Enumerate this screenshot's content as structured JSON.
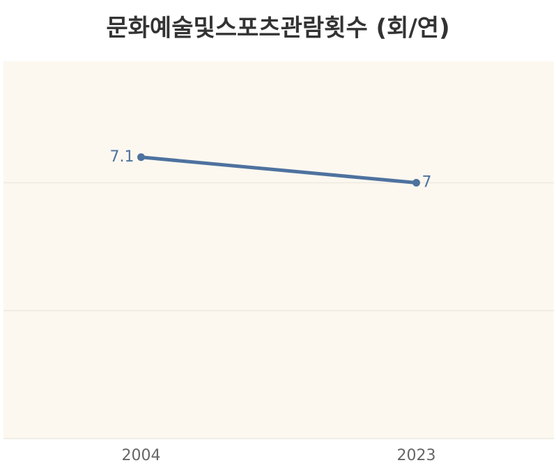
{
  "chart_data": {
    "type": "line",
    "title": "문화예술및스포츠관람횟수 (회/연)",
    "categories": [
      "2004",
      "2023"
    ],
    "series": [
      {
        "name": "문화예술및스포츠관람횟수",
        "color": "#4e729f",
        "values": [
          7.1,
          7
        ]
      }
    ],
    "ylim": [
      6,
      7.475
    ],
    "yticks": [
      6,
      6.5,
      7
    ],
    "grid": true
  }
}
